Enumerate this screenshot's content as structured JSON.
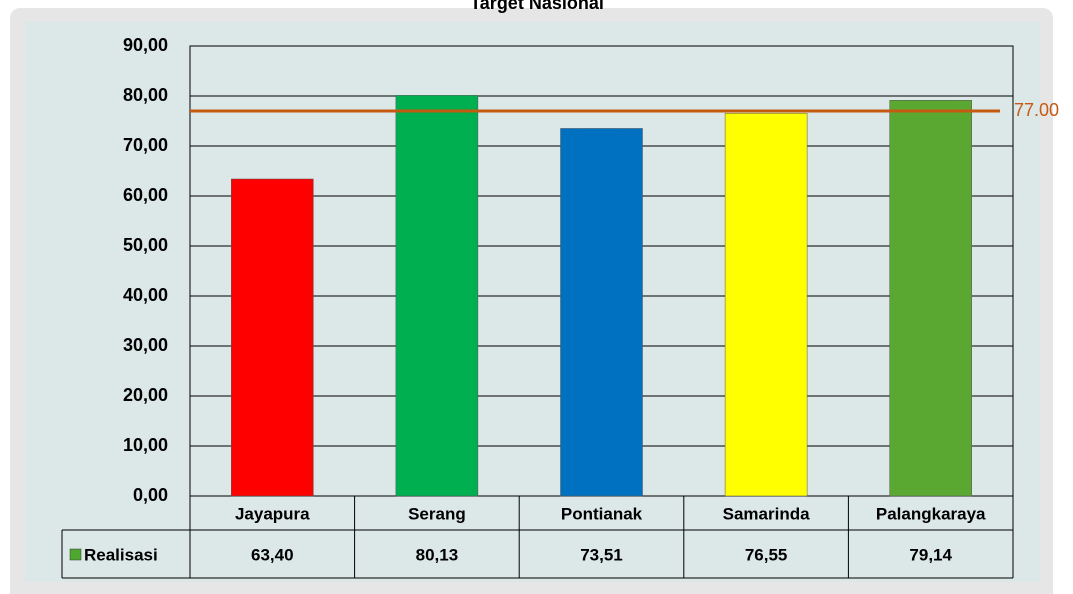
{
  "chart_data": {
    "type": "bar",
    "title": "Target Nasional",
    "categories": [
      "Jayapura",
      "Serang",
      "Pontianak",
      "Samarinda",
      "Palangkaraya"
    ],
    "series": [
      {
        "name": "Realisasi",
        "color": "#4ea72e",
        "colors": [
          "#ff0000",
          "#00b050",
          "#0070c0",
          "#ffff00",
          "#5aa832"
        ],
        "values": [
          63.4,
          80.13,
          73.51,
          76.55,
          79.14
        ],
        "value_labels": [
          "63,40",
          "80,13",
          "73,51",
          "76,55",
          "79,14"
        ]
      }
    ],
    "target": {
      "value": 77,
      "label": "77.00",
      "color": "#c55a11"
    },
    "ylim": [
      0,
      90
    ],
    "yticks": [
      {
        "value": 0,
        "label": "0,00"
      },
      {
        "value": 10,
        "label": "10,00"
      },
      {
        "value": 20,
        "label": "20,00"
      },
      {
        "value": 30,
        "label": "30,00"
      },
      {
        "value": 40,
        "label": "40,00"
      },
      {
        "value": 50,
        "label": "50,00"
      },
      {
        "value": 60,
        "label": "60,00"
      },
      {
        "value": 70,
        "label": "70,00"
      },
      {
        "value": 80,
        "label": "80,00"
      },
      {
        "value": 90,
        "label": "90,00"
      }
    ],
    "grid": true
  }
}
